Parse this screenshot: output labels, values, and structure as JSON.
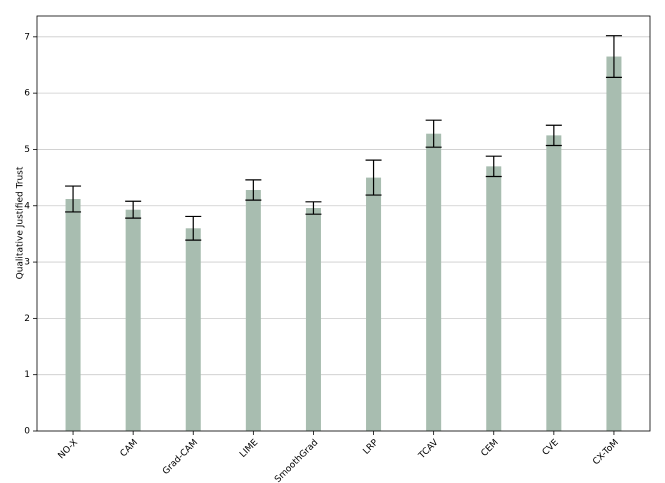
{
  "chart_data": {
    "type": "bar",
    "y_label": "Qualitative Justified Trust",
    "categories": [
      "NO-X",
      "CAM",
      "Grad-CAM",
      "LIME",
      "SmoothGrad",
      "LRP",
      "TCAV",
      "CEM",
      "CVE",
      "CX-ToM"
    ],
    "values": [
      4.12,
      3.93,
      3.6,
      4.28,
      3.96,
      4.5,
      5.28,
      4.7,
      5.25,
      6.65
    ],
    "errors": [
      0.23,
      0.15,
      0.21,
      0.18,
      0.11,
      0.31,
      0.24,
      0.18,
      0.18,
      0.37
    ],
    "color": "#a8bdb0",
    "error_color": "#000000",
    "ylim": [
      0,
      7.37
    ],
    "yticks": [
      0,
      1,
      2,
      3,
      4,
      5,
      6,
      7
    ],
    "grid": true
  }
}
